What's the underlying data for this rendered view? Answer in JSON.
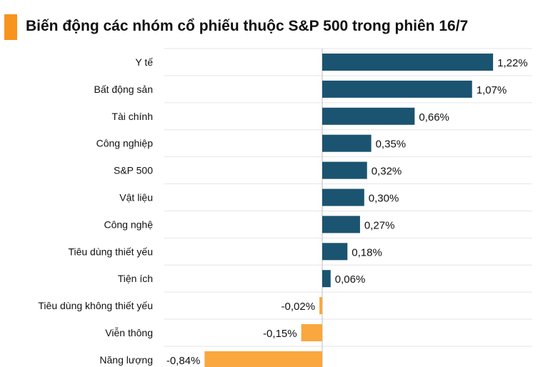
{
  "header": {
    "title": "Biến động các nhóm cổ phiếu thuộc S&P 500 trong phiên 16/7"
  },
  "colors": {
    "accent": "#F7941D",
    "positive": "#1B5470",
    "negative": "#F9A73E",
    "grid": "#E6E6E6",
    "axis": "#BDBDBD",
    "text": "#111111"
  },
  "chart_data": {
    "type": "bar",
    "orientation": "horizontal",
    "title": "Biến động các nhóm cổ phiếu thuộc S&P 500 trong phiên 16/7",
    "categories": [
      "Y tế",
      "Bất động sản",
      "Tài chính",
      "Công nghiệp",
      "S&P 500",
      "Vật liệu",
      "Công nghệ",
      "Tiêu dùng thiết yếu",
      "Tiện ích",
      "Tiêu dùng không thiết yếu",
      "Viễn thông",
      "Năng lượng"
    ],
    "values": [
      1.22,
      1.07,
      0.66,
      0.35,
      0.32,
      0.3,
      0.27,
      0.18,
      0.06,
      -0.02,
      -0.15,
      -0.84
    ],
    "data_labels": [
      "1,22%",
      "1,07%",
      "0,66%",
      "0,35%",
      "0,32%",
      "0,30%",
      "0,27%",
      "0,18%",
      "0,06%",
      "-0,02%",
      "-0,15%",
      "-0,84%"
    ],
    "unit": "%",
    "xlim": [
      -0.84,
      1.22
    ],
    "grid": true,
    "legend": "none"
  }
}
